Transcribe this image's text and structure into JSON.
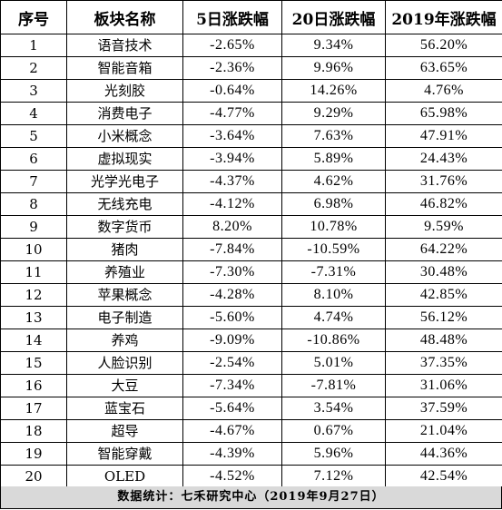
{
  "table": {
    "headers": [
      "序号",
      "板块名称",
      "5日涨跌幅",
      "20日涨跌幅",
      "2019年涨跌幅"
    ],
    "rows": [
      [
        "1",
        "语音技术",
        "-2.65%",
        "9.34%",
        "56.20%"
      ],
      [
        "2",
        "智能音箱",
        "-2.36%",
        "9.96%",
        "63.65%"
      ],
      [
        "3",
        "光刻胶",
        "-0.64%",
        "14.26%",
        "4.76%"
      ],
      [
        "4",
        "消费电子",
        "-4.77%",
        "9.29%",
        "65.98%"
      ],
      [
        "5",
        "小米概念",
        "-3.64%",
        "7.63%",
        "47.91%"
      ],
      [
        "6",
        "虚拟现实",
        "-3.94%",
        "5.89%",
        "24.43%"
      ],
      [
        "7",
        "光学光电子",
        "-4.37%",
        "4.62%",
        "31.76%"
      ],
      [
        "8",
        "无线充电",
        "-4.12%",
        "6.98%",
        "46.82%"
      ],
      [
        "9",
        "数字货币",
        "8.20%",
        "10.78%",
        "9.59%"
      ],
      [
        "10",
        "猪肉",
        "-7.84%",
        "-10.59%",
        "64.22%"
      ],
      [
        "11",
        "养殖业",
        "-7.30%",
        "-7.31%",
        "30.48%"
      ],
      [
        "12",
        "苹果概念",
        "-4.28%",
        "8.10%",
        "42.85%"
      ],
      [
        "13",
        "电子制造",
        "-5.60%",
        "4.74%",
        "56.12%"
      ],
      [
        "14",
        "养鸡",
        "-9.09%",
        "-10.86%",
        "48.48%"
      ],
      [
        "15",
        "人脸识别",
        "-2.54%",
        "5.01%",
        "37.35%"
      ],
      [
        "16",
        "大豆",
        "-7.34%",
        "-7.81%",
        "31.06%"
      ],
      [
        "17",
        "蓝宝石",
        "-5.64%",
        "3.54%",
        "37.59%"
      ],
      [
        "18",
        "超导",
        "-4.67%",
        "0.67%",
        "21.04%"
      ],
      [
        "19",
        "智能穿戴",
        "-4.39%",
        "5.96%",
        "44.36%"
      ],
      [
        "20",
        "OLED",
        "-4.52%",
        "7.12%",
        "42.54%"
      ]
    ]
  },
  "footer": {
    "text": "数据统计：七禾研究中心（2019年9月27日）"
  }
}
